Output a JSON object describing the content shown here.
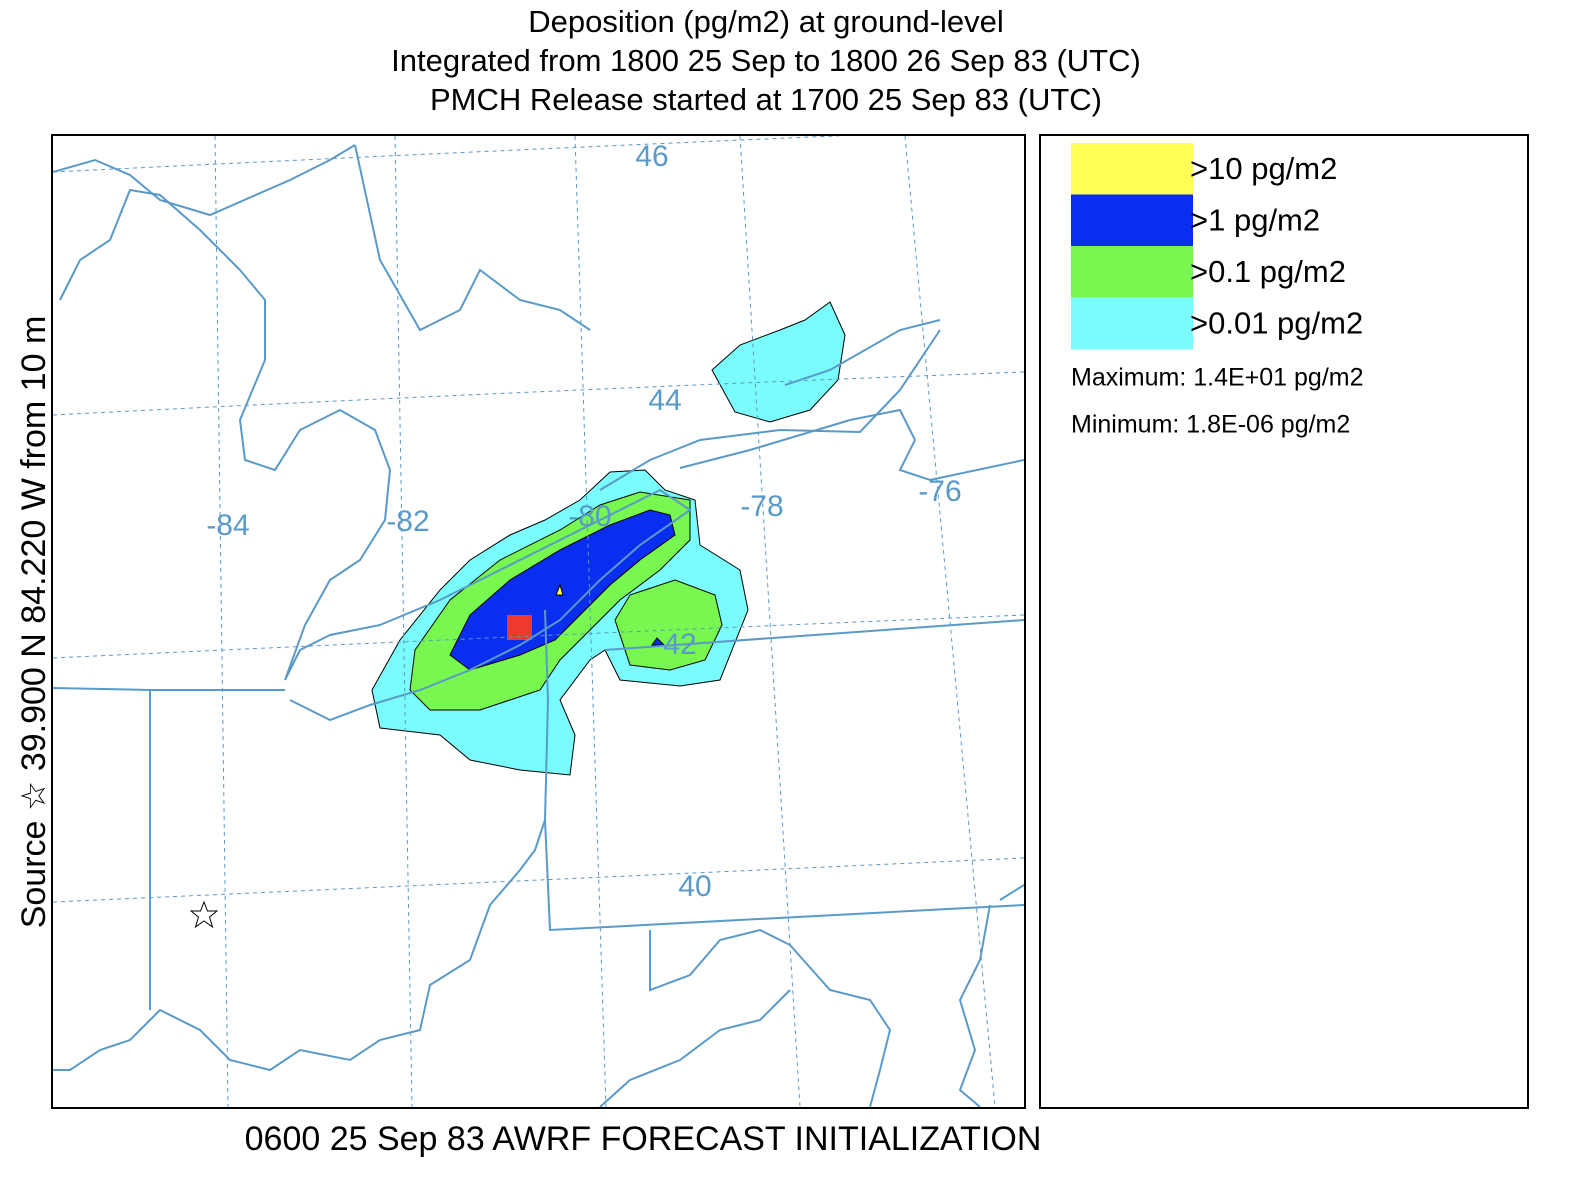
{
  "title": [
    "Deposition  (pg/m2) at ground-level",
    "Integrated from 1800 25 Sep to 1800 26 Sep 83 (UTC)",
    "PMCH Release started at 1700 25 Sep 83 (UTC)"
  ],
  "side_label": "Source ☆ 39.900 N 84.220 W from 10 m",
  "footer": "0600 25 Sep 83 AWRF FORECAST INITIALIZATION",
  "map": {
    "lat_labels": [
      "46",
      "44",
      "42",
      "40"
    ],
    "lon_labels": [
      "-84",
      "-82",
      "-80",
      "-78",
      "-76"
    ]
  },
  "legend": {
    "items": [
      {
        "label": ">10 pg/m2",
        "color": "#ffff55"
      },
      {
        "label": ">1 pg/m2",
        "color": "#0a2ef0"
      },
      {
        "label": ">0.1 pg/m2",
        "color": "#77f74f"
      },
      {
        "label": ">0.01 pg/m2",
        "color": "#7afcfd"
      }
    ],
    "maximum": "Maximum: 1.4E+01 pg/m2",
    "minimum": "Minimum: 1.8E-06 pg/m2"
  }
}
